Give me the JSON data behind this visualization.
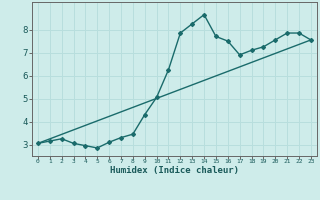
{
  "xlabel": "Humidex (Indice chaleur)",
  "bg_color": "#ceecea",
  "line_color": "#1a6b6b",
  "grid_color": "#b8dedd",
  "axis_color": "#666666",
  "xlim": [
    -0.5,
    23.5
  ],
  "ylim": [
    2.5,
    9.2
  ],
  "xticks": [
    0,
    1,
    2,
    3,
    4,
    5,
    6,
    7,
    8,
    9,
    10,
    11,
    12,
    13,
    14,
    15,
    16,
    17,
    18,
    19,
    20,
    21,
    22,
    23
  ],
  "yticks": [
    3,
    4,
    5,
    6,
    7,
    8
  ],
  "curve_x": [
    0,
    1,
    2,
    3,
    4,
    5,
    6,
    7,
    8,
    9,
    10,
    11,
    12,
    13,
    14,
    15,
    16,
    17,
    18,
    19,
    20,
    21,
    22,
    23
  ],
  "curve_y": [
    3.05,
    3.15,
    3.25,
    3.05,
    2.95,
    2.85,
    3.1,
    3.3,
    3.45,
    4.3,
    5.05,
    6.25,
    7.85,
    8.25,
    8.65,
    7.7,
    7.5,
    6.9,
    7.1,
    7.25,
    7.55,
    7.85,
    7.85,
    7.55
  ],
  "line_x": [
    0,
    23
  ],
  "line_y": [
    3.05,
    7.55
  ]
}
